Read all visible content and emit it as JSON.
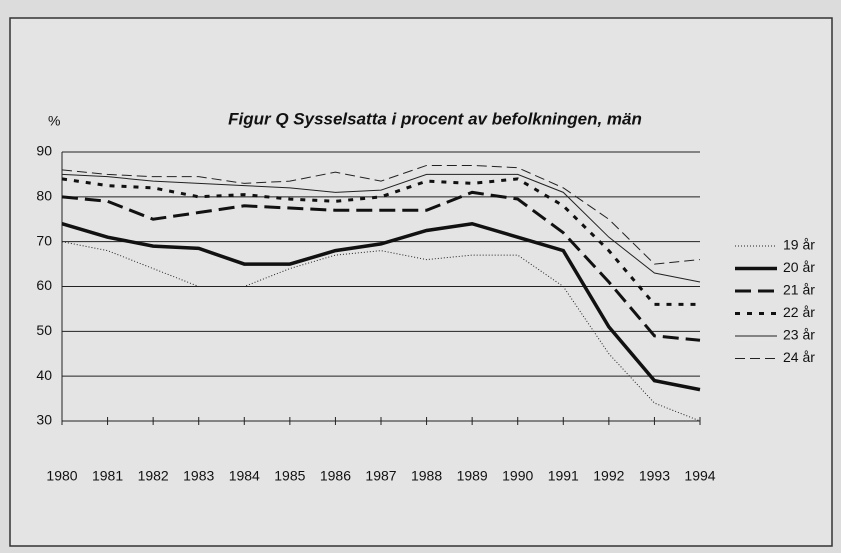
{
  "chart_data": {
    "type": "line",
    "title": "Figur Q  Sysselsatta i procent av befolkningen, män",
    "y_label": "%",
    "categories": [
      "1980",
      "1981",
      "1982",
      "1983",
      "1984",
      "1985",
      "1986",
      "1987",
      "1988",
      "1989",
      "1990",
      "1991",
      "1992",
      "1993",
      "1994"
    ],
    "ylim": [
      30,
      90
    ],
    "yticks": [
      30,
      40,
      50,
      60,
      70,
      80,
      90
    ],
    "grid": true,
    "legend": "right",
    "series": [
      {
        "name": "19 år",
        "color": "#222",
        "width": 1,
        "dash": "1,2",
        "values": [
          70,
          68,
          64,
          60,
          60,
          64,
          67,
          68,
          66,
          67,
          67,
          60,
          45,
          34,
          30
        ]
      },
      {
        "name": "20 år",
        "color": "#111",
        "width": 3.5,
        "dash": "none",
        "values": [
          74,
          71,
          69,
          68.5,
          65,
          65,
          68,
          69.5,
          72.5,
          74,
          71,
          68,
          51,
          39,
          37
        ]
      },
      {
        "name": "21 år",
        "color": "#111",
        "width": 3,
        "dash": "16,7",
        "values": [
          80,
          79,
          75,
          76.5,
          78,
          77.5,
          77,
          77,
          77,
          81,
          79.5,
          72,
          61,
          49,
          48
        ]
      },
      {
        "name": "22 år",
        "color": "#111",
        "width": 3,
        "dash": "5,7",
        "values": [
          84,
          82.5,
          82,
          80,
          80.5,
          79.5,
          79,
          80,
          83.5,
          83,
          84,
          78,
          68,
          56,
          56
        ]
      },
      {
        "name": "23 år",
        "color": "#222",
        "width": 1,
        "dash": "none",
        "values": [
          85,
          84.5,
          83.5,
          83,
          82.5,
          82,
          81,
          81.5,
          85,
          85,
          85,
          81,
          71,
          63,
          61
        ]
      },
      {
        "name": "24 år",
        "color": "#222",
        "width": 1,
        "dash": "10,5",
        "values": [
          86,
          85,
          84.5,
          84.5,
          83,
          83.5,
          85.5,
          83.5,
          87,
          87,
          86.5,
          82,
          75,
          65,
          66
        ]
      }
    ]
  }
}
